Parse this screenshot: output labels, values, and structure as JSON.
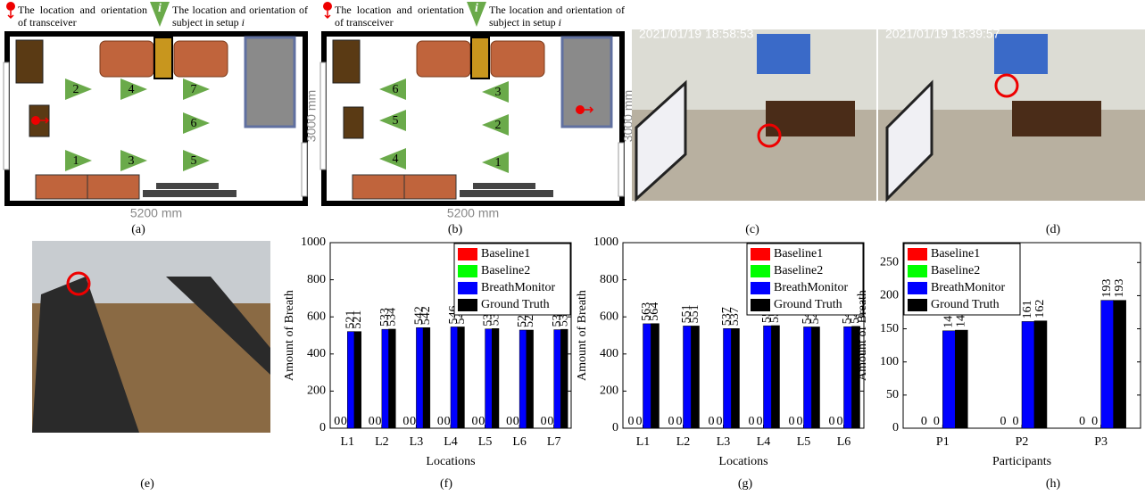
{
  "floorplans": [
    {
      "transceiver_legend": "The location and orientation of transceiver",
      "subject_icon": "i",
      "subject_legend": "The location and orientation of subject in setup",
      "subject_var": "i",
      "width_label": "5200 mm",
      "height_label": "3000 mm",
      "subjects": [
        "1",
        "2",
        "3",
        "4",
        "5",
        "6",
        "7"
      ],
      "caption": "(a)"
    },
    {
      "transceiver_legend": "The location and orientation of transceiver",
      "subject_icon": "i",
      "subject_legend": "The location and orientation of subject in setup",
      "subject_var": "i",
      "width_label": "5200 mm",
      "height_label": "3000 mm",
      "subjects": [
        "1",
        "2",
        "3",
        "4",
        "5",
        "6"
      ],
      "caption": "(b)"
    }
  ],
  "photos": [
    {
      "timestamp": "2021/01/19 18:58:53",
      "caption": "(c)"
    },
    {
      "timestamp": "2021/01/19 18:39:57",
      "caption": "(d)"
    },
    {
      "caption": "(e)"
    }
  ],
  "chart_data": [
    {
      "type": "bar",
      "caption": "(f)",
      "xlabel": "Locations",
      "ylabel": "Amount of Breath",
      "categories": [
        "L1",
        "L2",
        "L3",
        "L4",
        "L5",
        "L6",
        "L7"
      ],
      "series": [
        {
          "name": "Baseline1",
          "color": "#ff0000",
          "values": [
            0,
            0,
            0,
            0,
            0,
            0,
            0
          ]
        },
        {
          "name": "Baseline2",
          "color": "#00ff00",
          "values": [
            0,
            0,
            0,
            0,
            0,
            0,
            0
          ]
        },
        {
          "name": "BreathMonitor",
          "color": "#0000ff",
          "values": [
            521,
            533,
            542,
            546,
            535,
            529,
            531
          ]
        },
        {
          "name": "Ground Truth",
          "color": "#000000",
          "values": [
            521,
            534,
            542,
            546,
            537,
            529,
            533
          ]
        }
      ],
      "ylim": [
        0,
        1000
      ],
      "yticks": [
        0,
        200,
        400,
        600,
        800,
        1000
      ],
      "legend": "upper right"
    },
    {
      "type": "bar",
      "caption": "(g)",
      "xlabel": "Locations",
      "ylabel": "Amount of Breath",
      "categories": [
        "L1",
        "L2",
        "L3",
        "L4",
        "L5",
        "L6"
      ],
      "series": [
        {
          "name": "Baseline1",
          "color": "#ff0000",
          "values": [
            0,
            0,
            0,
            0,
            0,
            0
          ]
        },
        {
          "name": "Baseline2",
          "color": "#00ff00",
          "values": [
            0,
            0,
            0,
            0,
            0,
            0
          ]
        },
        {
          "name": "BreathMonitor",
          "color": "#0000ff",
          "values": [
            563,
            551,
            537,
            552,
            546,
            547
          ]
        },
        {
          "name": "Ground Truth",
          "color": "#000000",
          "values": [
            564,
            551,
            537,
            553,
            546,
            549
          ]
        }
      ],
      "ylim": [
        0,
        1000
      ],
      "yticks": [
        0,
        200,
        400,
        600,
        800,
        1000
      ],
      "legend": "upper right"
    },
    {
      "type": "bar",
      "caption": "(h)",
      "xlabel": "Participants",
      "ylabel": "Amount of Breath",
      "categories": [
        "P1",
        "P2",
        "P3"
      ],
      "series": [
        {
          "name": "Baseline1",
          "color": "#ff0000",
          "values": [
            0,
            0,
            0
          ]
        },
        {
          "name": "Baseline2",
          "color": "#00ff00",
          "values": [
            0,
            0,
            0
          ]
        },
        {
          "name": "BreathMonitor",
          "color": "#0000ff",
          "values": [
            147,
            161,
            193
          ]
        },
        {
          "name": "Ground Truth",
          "color": "#000000",
          "values": [
            148,
            162,
            193
          ]
        }
      ],
      "ylim": [
        0,
        280
      ],
      "yticks": [
        0,
        50,
        100,
        150,
        200,
        250
      ],
      "legend": "upper left"
    }
  ]
}
